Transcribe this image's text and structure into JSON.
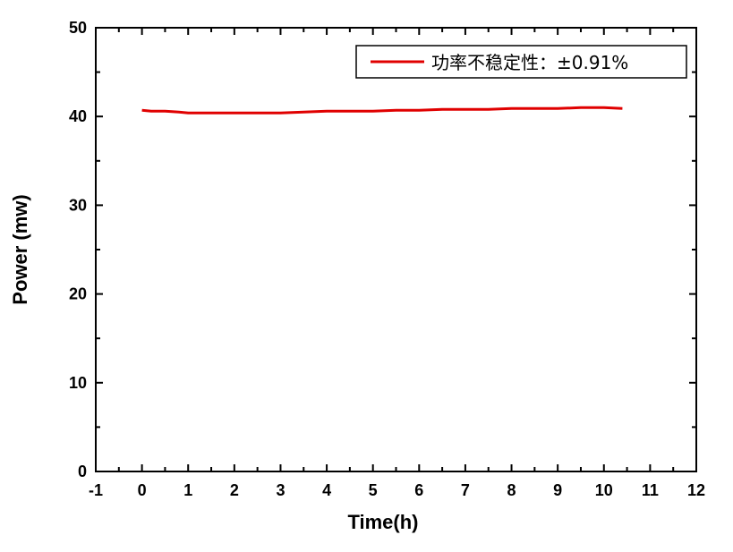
{
  "chart_data": {
    "type": "line",
    "title": "",
    "xlabel": "Time(h)",
    "ylabel": "Power (mw)",
    "xlim": [
      -1,
      12
    ],
    "ylim": [
      0,
      50
    ],
    "x_ticks": [
      "-1",
      "0",
      "1",
      "2",
      "3",
      "4",
      "5",
      "6",
      "7",
      "8",
      "9",
      "10",
      "11",
      "12"
    ],
    "y_ticks": [
      "0",
      "10",
      "20",
      "30",
      "40",
      "50"
    ],
    "grid": false,
    "legend_position": "top-right",
    "series": [
      {
        "name": "功率不稳定性：±0.91%",
        "color": "#e00000",
        "x": [
          0,
          0.2,
          0.5,
          0.8,
          1.0,
          1.5,
          2.0,
          2.5,
          3.0,
          3.5,
          4.0,
          4.5,
          5.0,
          5.5,
          6.0,
          6.5,
          7.0,
          7.5,
          8.0,
          8.5,
          9.0,
          9.5,
          10.0,
          10.4
        ],
        "y": [
          40.7,
          40.6,
          40.6,
          40.5,
          40.4,
          40.4,
          40.4,
          40.4,
          40.4,
          40.5,
          40.6,
          40.6,
          40.6,
          40.7,
          40.7,
          40.8,
          40.8,
          40.8,
          40.9,
          40.9,
          40.9,
          41.0,
          41.0,
          40.9
        ]
      }
    ]
  }
}
